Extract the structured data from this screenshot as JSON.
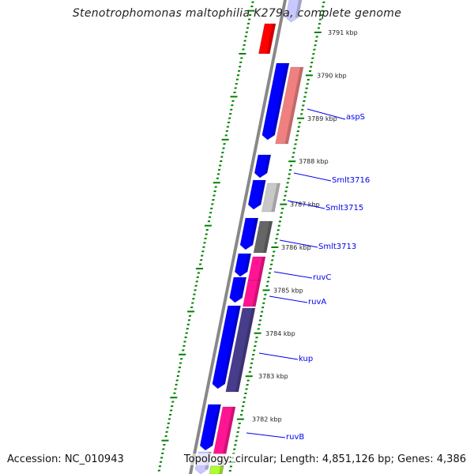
{
  "title": "Stenotrophomonas maltophilia K279a, complete genome",
  "accession": "Accession: NC_010943",
  "topology": "Topology: circular; Length: 4,851,126 bp; Genes: 4,386",
  "kbp_labels": [
    "3791 kbp",
    "3790 kbp",
    "3789 kbp",
    "3788 kbp",
    "3787 kbp",
    "3786 kbp",
    "3785 kbp",
    "3784 kbp",
    "3783 kbp",
    "3782 kbp"
  ],
  "gene_labels": [
    "aspS",
    "Smlt3716",
    "Smlt3715",
    "Smlt3713",
    "ruvC",
    "ruvA",
    "kup",
    "ruvB"
  ],
  "colors": {
    "forward": "#0000ff",
    "backbone": "#888888",
    "ticks": "#008000",
    "label": "#0000ee"
  }
}
